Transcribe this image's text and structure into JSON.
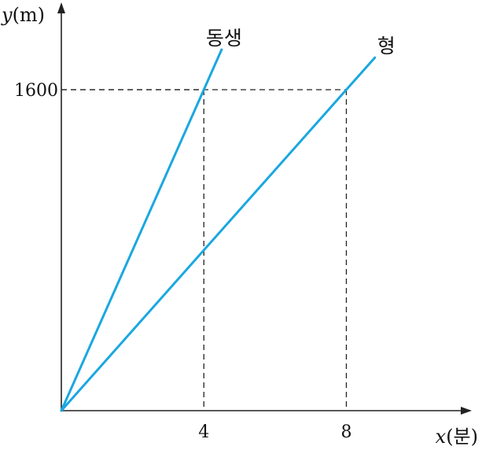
{
  "chart_data": {
    "type": "line",
    "x_axis": {
      "label_var": "x",
      "label_unit": "(분)",
      "ticks": [
        4,
        8
      ],
      "lim": [
        0,
        11.3
      ]
    },
    "y_axis": {
      "label_var": "y",
      "label_unit": "(m)",
      "ticks": [
        1600
      ],
      "lim": [
        0,
        2000
      ]
    },
    "series": [
      {
        "name": "동생",
        "color": "#1aa7e0",
        "points": [
          [
            0,
            0
          ],
          [
            4,
            1600
          ],
          [
            4.5,
            1800
          ]
        ]
      },
      {
        "name": "형",
        "color": "#1aa7e0",
        "points": [
          [
            0,
            0
          ],
          [
            8,
            1600
          ],
          [
            8.8,
            1760
          ]
        ]
      }
    ],
    "guides": [
      {
        "x": 4,
        "y": 1600
      },
      {
        "x": 8,
        "y": 1600
      }
    ],
    "grid": false,
    "legend": "none"
  }
}
